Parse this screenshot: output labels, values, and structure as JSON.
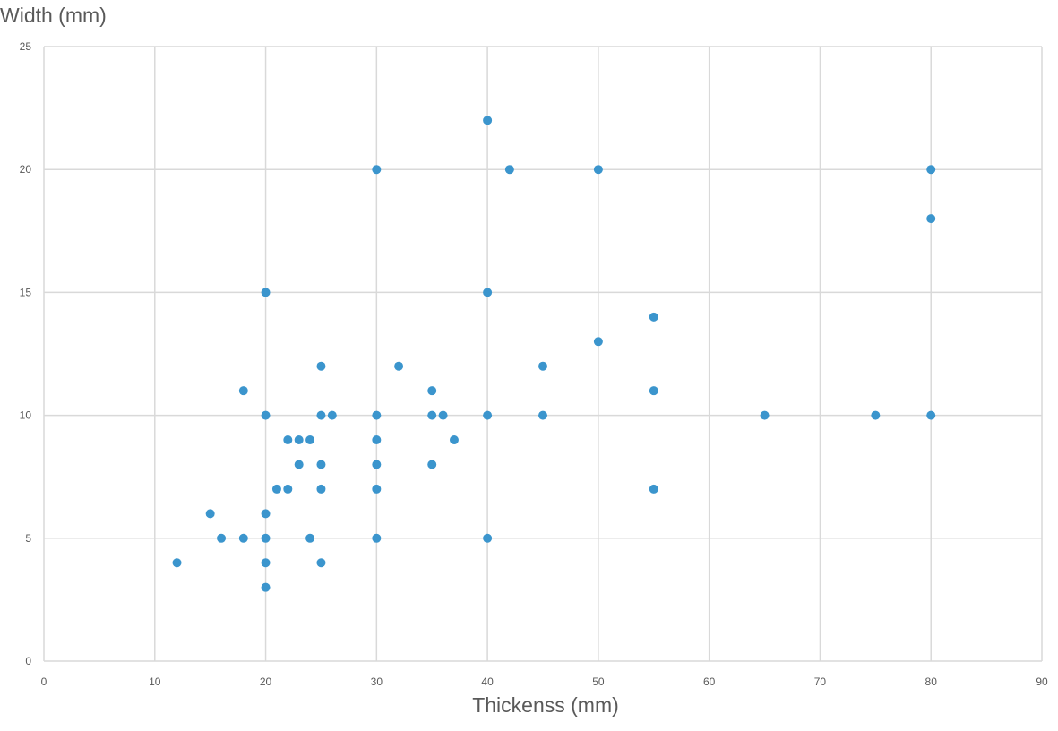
{
  "chart_data": {
    "type": "scatter",
    "title": "",
    "xlabel": "Thickenss (mm)",
    "ylabel": "Width (mm)",
    "xlim": [
      0,
      90
    ],
    "ylim": [
      0,
      25
    ],
    "x_ticks": [
      0,
      10,
      20,
      30,
      40,
      50,
      60,
      70,
      80,
      90
    ],
    "y_ticks": [
      0,
      5,
      10,
      15,
      20,
      25
    ],
    "grid": true,
    "legend": "none",
    "marker_color": "#3B95CD",
    "series": [
      {
        "points": [
          [
            12,
            4
          ],
          [
            15,
            6
          ],
          [
            16,
            5
          ],
          [
            18,
            5
          ],
          [
            18,
            11
          ],
          [
            20,
            3
          ],
          [
            20,
            4
          ],
          [
            20,
            5
          ],
          [
            20,
            6
          ],
          [
            20,
            10
          ],
          [
            20,
            15
          ],
          [
            21,
            7
          ],
          [
            22,
            7
          ],
          [
            22,
            9
          ],
          [
            23,
            8
          ],
          [
            23,
            9
          ],
          [
            24,
            5
          ],
          [
            24,
            9
          ],
          [
            25,
            4
          ],
          [
            25,
            7
          ],
          [
            25,
            8
          ],
          [
            25,
            10
          ],
          [
            25,
            12
          ],
          [
            26,
            10
          ],
          [
            30,
            5
          ],
          [
            30,
            7
          ],
          [
            30,
            8
          ],
          [
            30,
            9
          ],
          [
            30,
            10
          ],
          [
            30,
            20
          ],
          [
            32,
            12
          ],
          [
            35,
            8
          ],
          [
            35,
            10
          ],
          [
            35,
            11
          ],
          [
            36,
            10
          ],
          [
            37,
            9
          ],
          [
            40,
            5
          ],
          [
            40,
            10
          ],
          [
            40,
            15
          ],
          [
            40,
            22
          ],
          [
            42,
            20
          ],
          [
            45,
            10
          ],
          [
            45,
            12
          ],
          [
            50,
            13
          ],
          [
            50,
            20
          ],
          [
            55,
            7
          ],
          [
            55,
            11
          ],
          [
            55,
            14
          ],
          [
            65,
            10
          ],
          [
            75,
            10
          ],
          [
            80,
            10
          ],
          [
            80,
            18
          ],
          [
            80,
            20
          ]
        ]
      }
    ]
  }
}
